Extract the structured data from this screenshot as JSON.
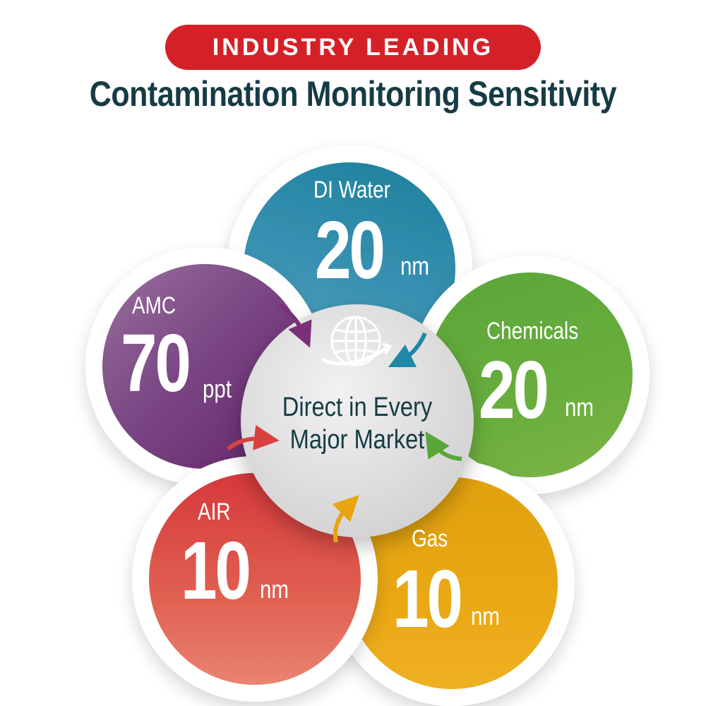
{
  "header": {
    "badge": "INDUSTRY LEADING",
    "title": "Contamination Monitoring Sensitivity"
  },
  "center": {
    "line1": "Direct in Every",
    "line2": "Major Market",
    "icon": "globe-icon"
  },
  "segments": {
    "di_water": {
      "name": "DI Water",
      "value": "20",
      "unit": "nm",
      "color": "#2a8aa8"
    },
    "chemicals": {
      "name": "Chemicals",
      "value": "20",
      "unit": "nm",
      "color": "#5aa63a"
    },
    "gas": {
      "name": "Gas",
      "value": "10",
      "unit": "nm",
      "color": "#e8a511"
    },
    "air": {
      "name": "AIR",
      "value": "10",
      "unit": "nm",
      "color": "#d9413f"
    },
    "amc": {
      "name": "AMC",
      "value": "70",
      "unit": "ppt",
      "color": "#6e3372"
    }
  },
  "colors": {
    "badge": "#d42128",
    "title": "#163b45",
    "arrow_purple": "#7a2f78",
    "arrow_blue": "#1f87a8",
    "arrow_green": "#5aa63a",
    "arrow_yellow": "#e8a511",
    "arrow_red": "#d9413f"
  }
}
